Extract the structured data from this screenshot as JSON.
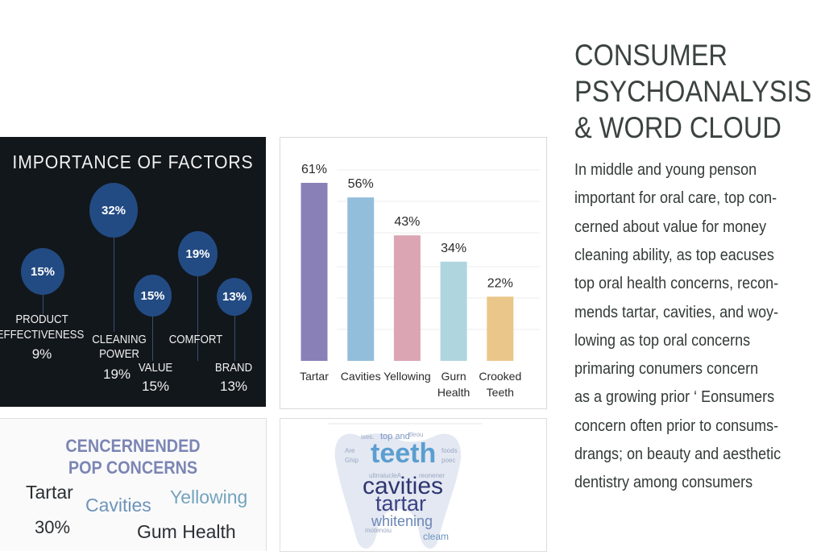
{
  "factors_panel": {
    "title": "IMPORTANCE OF FACTORS",
    "bubbles": [
      {
        "value": "15%",
        "label_lines": [
          "PRODUCT",
          "EFFECTIVENESS"
        ],
        "value_below": "9%"
      },
      {
        "value": "32%",
        "label_lines": [
          "CLEANING",
          "POWER"
        ],
        "value_below": "19%"
      },
      {
        "value": "15%",
        "label_lines": [
          "VALUE"
        ],
        "value_below": "15%"
      },
      {
        "value": "19%",
        "label_lines": [
          "COMFORT"
        ],
        "value_below": ""
      },
      {
        "value": "13%",
        "label_lines": [
          "BRAND"
        ],
        "value_below": "13%"
      }
    ],
    "bubble_color": "#234b83",
    "background": "#12171c"
  },
  "chart_data": {
    "type": "bar",
    "categories": [
      "Tartar",
      "Cavities",
      "Yellowing",
      "Gurn Health",
      "Crooked Teeth"
    ],
    "category_lines": [
      [
        "Tartar"
      ],
      [
        "Cavities"
      ],
      [
        "Yellowing"
      ],
      [
        "Gurn",
        "Health"
      ],
      [
        "Crooked",
        "Teeth"
      ]
    ],
    "values": [
      61,
      56,
      43,
      34,
      22
    ],
    "data_labels": [
      "61%",
      "56%",
      "43%",
      "34%",
      "22%"
    ],
    "colors": [
      "#8a80b8",
      "#93bedb",
      "#dba5b3",
      "#afd5df",
      "#eac68a"
    ],
    "title": "",
    "xlabel": "",
    "ylabel": "",
    "ylim": [
      0,
      61
    ],
    "grid": true,
    "legend": "none"
  },
  "concerns_panel": {
    "title_lines": [
      "CENCERNENDED",
      "POP CONCERNS"
    ],
    "words": [
      {
        "text": "Tartar",
        "color": "#2b2f33"
      },
      {
        "text": "Cavities",
        "color": "#6d94ba"
      },
      {
        "text": "Yellowing",
        "color": "#74a3bd"
      },
      {
        "text": "30%",
        "color": "#2b2f33"
      },
      {
        "text": "Gum Health",
        "color": "#2b2f33"
      }
    ]
  },
  "word_cloud": {
    "shape": "tooth",
    "main_words": [
      {
        "text": "teeth",
        "color": "#5b9ed0"
      },
      {
        "text": "cavities",
        "color": "#2e3570"
      },
      {
        "text": "tartar",
        "color": "#3b4283"
      },
      {
        "text": "whitening",
        "color": "#6b86b6"
      },
      {
        "text": "cleam",
        "color": "#6d93c0"
      }
    ],
    "minor_words": [
      "ises.",
      "top and",
      "tleou",
      "Are",
      "Ghip",
      "poec",
      "ultrraiuclеA",
      "reonener",
      "motenoiu",
      "foods"
    ]
  },
  "right_column": {
    "title_lines": [
      "CONSUMER",
      "PSYCHOANALYSIS",
      "& WORD CLOUD"
    ],
    "paragraph_lines": [
      "In middle and young penson",
      "important for oral care, top con-",
      "cerned about value for money",
      "cleaning ability, as top eacuses",
      "top oral health concerns, recon-",
      "mends tartar, cavities, and woy-",
      "lowing as top oral concerns",
      "primaring conumers concern",
      "as a growing prior ‘ Eonsumers",
      "concern often prior to consums-",
      "drangs; on beauty and aesthetic",
      "dentistry among consumers"
    ]
  }
}
